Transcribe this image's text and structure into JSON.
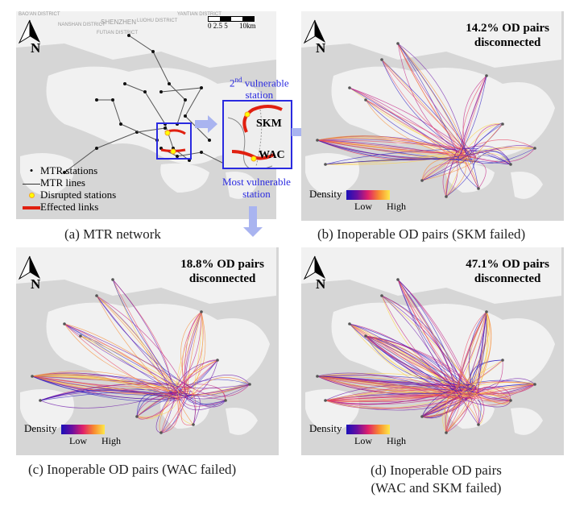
{
  "map_labels": {
    "shenzhen": "SHENZHEN",
    "nanshan": "NANSHAN DISTRICT",
    "futian": "FUTIAN DISTRICT",
    "luohu": "LUOHU DISTRICT",
    "baoan": "BAO'AN DISTRICT",
    "yantian": "YANTIAN DISTRICT"
  },
  "north_label": "N",
  "panel_a": {
    "caption": "(a) MTR network",
    "scale_bar": {
      "ticks": [
        "0",
        "2.5",
        "5",
        "10km"
      ]
    },
    "legend": [
      {
        "symbol": "black-dot",
        "label": "MTR stations"
      },
      {
        "symbol": "line",
        "label": "MTR lines"
      },
      {
        "symbol": "orange-circle",
        "label": "Disrupted stations"
      },
      {
        "symbol": "red-bar",
        "label": "Effected links"
      }
    ],
    "inset": {
      "station_top": "SKM",
      "station_bottom": "WAC",
      "annotation_top_sup": "nd",
      "annotation_top_num": "2",
      "annotation_top_rest": "vulnerable",
      "annotation_top_line2": "station",
      "annotation_bottom": "Most vulnerable",
      "annotation_bottom_line2": "station"
    }
  },
  "panel_b": {
    "caption": "(b) Inoperable OD pairs (SKM failed)",
    "stat_line1": "14.2% OD pairs",
    "stat_line2": "disconnected",
    "intensity": 0.4
  },
  "panel_c": {
    "caption": "(c)  Inoperable OD pairs (WAC failed)",
    "stat_line1": "18.8% OD pairs",
    "stat_line2": "disconnected",
    "intensity": 0.5
  },
  "panel_d": {
    "caption_line1": "(d) Inoperable OD pairs",
    "caption_line2": "(WAC and SKM failed)",
    "stat_line1": "47.1% OD pairs",
    "stat_line2": "disconnected",
    "intensity": 1.0
  },
  "density_legend": {
    "title": "Density",
    "low": "Low",
    "high": "High"
  },
  "colors": {
    "inset_box": "#2a2ae0",
    "effected_links": "#e02010",
    "disrupted_station": "#f5a623",
    "arrow": "#a9b4f0",
    "water": "#d6d6d6",
    "land": "#f1f1f1"
  }
}
